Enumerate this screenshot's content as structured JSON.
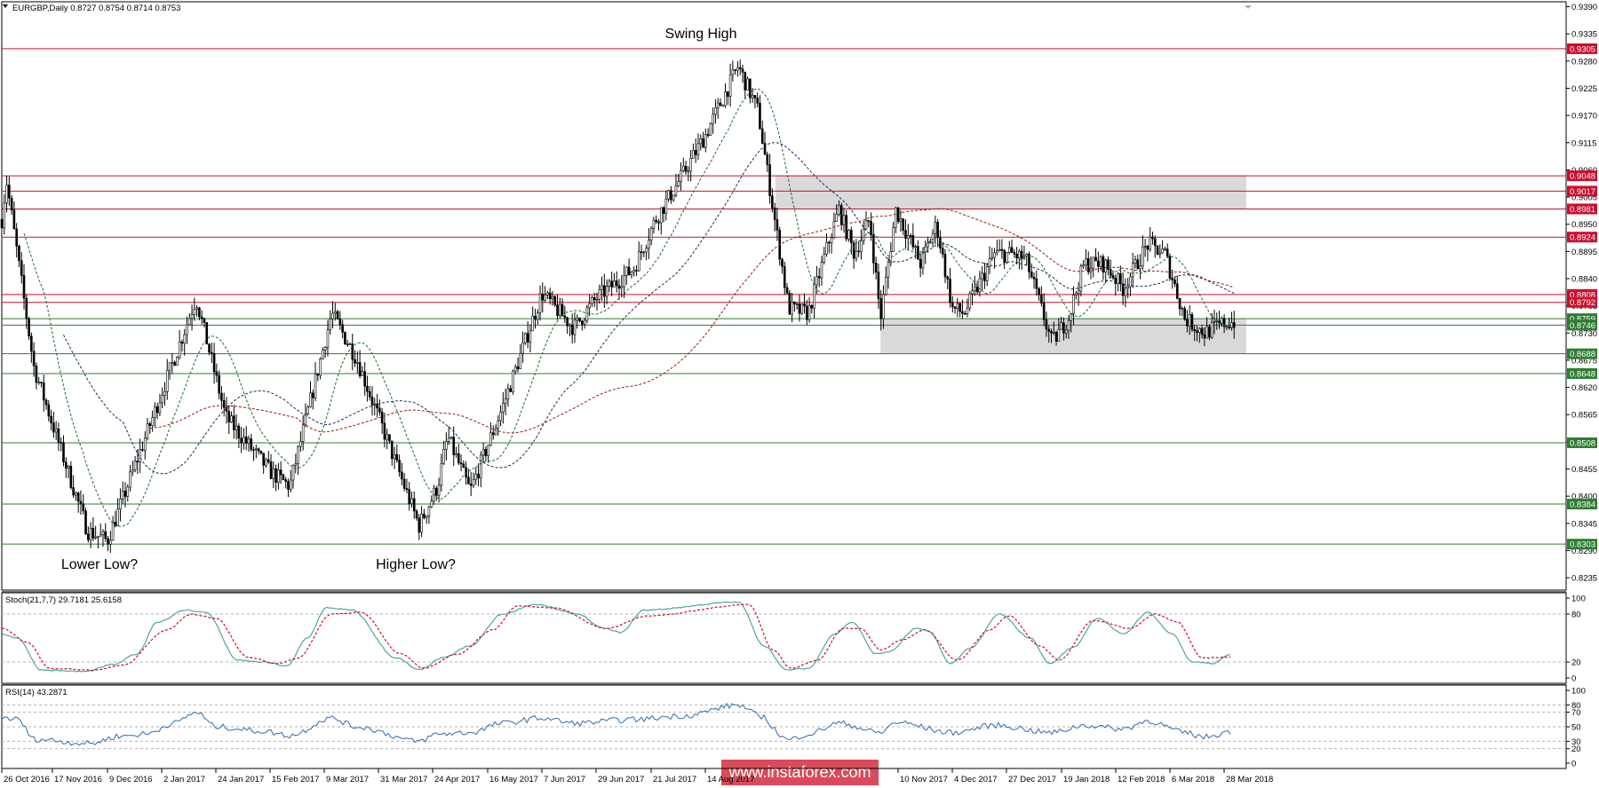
{
  "header": {
    "symbol_line": "EURGBP,Daily  0.8727 0.8754 0.8714 0.8753"
  },
  "annotations": {
    "swing_high": "Swing High",
    "lower_low": "Lower Low?",
    "higher_low": "Higher Low?"
  },
  "watermark": "www.instaforex.com",
  "colors": {
    "resistance": "#c8102e",
    "support": "#2e7d32",
    "zone": "#d9d9d9",
    "candle": "#000000",
    "stoch_main": "#4fa3a3",
    "stoch_signal": "#c8102e",
    "rsi": "#2b6cb0",
    "ma_fast": "#1a6b2a",
    "ma_mid": "#1a2a5a",
    "ma_slow": "#8b1a1a"
  },
  "chart_data": [
    {
      "type": "candlestick",
      "title": "EURGBP,Daily",
      "ohlc_last": {
        "open": 0.8727,
        "high": 0.8754,
        "low": 0.8714,
        "close": 0.8753
      },
      "ylim": [
        0.821,
        0.94
      ],
      "x_tick_labels": [
        "26 Oct 2016",
        "17 Nov 2016",
        "9 Dec 2016",
        "2 Jan 2017",
        "24 Jan 2017",
        "15 Feb 2017",
        "9 Mar 2017",
        "31 Mar 2017",
        "24 Apr 2017",
        "16 May 2017",
        "7 Jun 2017",
        "29 Jun 2017",
        "21 Jul 2017",
        "14 Aug 2017",
        "",
        "10 Nov 2017",
        "4 Dec 2017",
        "27 Dec 2017",
        "19 Jan 2018",
        "12 Feb 2018",
        "6 Mar 2018",
        "28 Mar 2018"
      ],
      "y_tick_labels": [
        "0.9390",
        "0.9335",
        "0.9280",
        "0.9225",
        "0.9170",
        "0.9115",
        "0.9060",
        "0.9005",
        "0.8950",
        "0.8895",
        "0.8840",
        "0.8785",
        "0.8730",
        "0.8675",
        "0.8620",
        "0.8565",
        "0.8510",
        "0.8455",
        "0.8400",
        "0.8345",
        "0.8290",
        "0.8235"
      ],
      "key_points": [
        {
          "x": "26 Oct 2016",
          "y": 0.896
        },
        {
          "x": "28 Oct 2016",
          "y": 0.904
        },
        {
          "x": "9 Nov 2016",
          "y": 0.866
        },
        {
          "x": "1 Dec 2016",
          "y": 0.833
        },
        {
          "x": "9 Dec 2016",
          "y": 0.831
        },
        {
          "x": "16 Jan 2017",
          "y": 0.88
        },
        {
          "x": "28 Jan 2017",
          "y": 0.856
        },
        {
          "x": "15 Feb 2017",
          "y": 0.845
        },
        {
          "x": "23 Feb 2017",
          "y": 0.842
        },
        {
          "x": "12 Mar 2017",
          "y": 0.877
        },
        {
          "x": "22 Mar 2017",
          "y": 0.868
        },
        {
          "x": "18 Apr 2017",
          "y": 0.834
        },
        {
          "x": "26 Apr 2017",
          "y": 0.842
        },
        {
          "x": "30 Apr 2017",
          "y": 0.852
        },
        {
          "x": "9 May 2017",
          "y": 0.841
        },
        {
          "x": "22 May 2017",
          "y": 0.858
        },
        {
          "x": "7 Jun 2017",
          "y": 0.881
        },
        {
          "x": "20 Jun 2017",
          "y": 0.874
        },
        {
          "x": "29 Jun 2017",
          "y": 0.88
        },
        {
          "x": "14 Jul 2017",
          "y": 0.886
        },
        {
          "x": "23 Jul 2017",
          "y": 0.896
        },
        {
          "x": "4 Aug 2017",
          "y": 0.905
        },
        {
          "x": "14 Aug 2017",
          "y": 0.913
        },
        {
          "x": "29 Aug 2017",
          "y": 0.927
        },
        {
          "x": "7 Sep 2017",
          "y": 0.918
        },
        {
          "x": "15 Sep 2017",
          "y": 0.895
        },
        {
          "x": "21 Sep 2017",
          "y": 0.878
        },
        {
          "x": "30 Sep 2017",
          "y": 0.877
        },
        {
          "x": "9 Oct 2017",
          "y": 0.891
        },
        {
          "x": "14 Oct 2017",
          "y": 0.898
        },
        {
          "x": "21 Oct 2017",
          "y": 0.889
        },
        {
          "x": "28 Oct 2017",
          "y": 0.896
        },
        {
          "x": "2 Nov 2017",
          "y": 0.876
        },
        {
          "x": "9 Nov 2017",
          "y": 0.898
        },
        {
          "x": "20 Nov 2017",
          "y": 0.887
        },
        {
          "x": "27 Nov 2017",
          "y": 0.895
        },
        {
          "x": "4 Dec 2017",
          "y": 0.878
        },
        {
          "x": "9 Dec 2017",
          "y": 0.877
        },
        {
          "x": "22 Dec 2017",
          "y": 0.889
        },
        {
          "x": "29 Dec 2017",
          "y": 0.889
        },
        {
          "x": "4 Jan 2018",
          "y": 0.888
        },
        {
          "x": "15 Jan 2018",
          "y": 0.871
        },
        {
          "x": "22 Jan 2018",
          "y": 0.876
        },
        {
          "x": "29 Jan 2018",
          "y": 0.887
        },
        {
          "x": "7 Feb 2018",
          "y": 0.887
        },
        {
          "x": "15 Feb 2018",
          "y": 0.882
        },
        {
          "x": "25 Feb 2018",
          "y": 0.891
        },
        {
          "x": "4 Mar 2018",
          "y": 0.889
        },
        {
          "x": "12 Mar 2018",
          "y": 0.876
        },
        {
          "x": "20 Mar 2018",
          "y": 0.873
        },
        {
          "x": "28 Mar 2018",
          "y": 0.875
        },
        {
          "x": "2 Apr 2018",
          "y": 0.8753
        }
      ],
      "horizontal_levels": {
        "resistance": [
          0.9305,
          0.9048,
          0.9017,
          0.8981,
          0.8924,
          0.8808,
          0.8792
        ],
        "support": [
          0.8759,
          0.8746,
          0.8688,
          0.8648,
          0.8508,
          0.8384,
          0.8303
        ],
        "labels": [
          "0.9305",
          "0.9048",
          "0.9017",
          "0.8981",
          "0.8924",
          "0.8808",
          "0.8792",
          "0.8759",
          "0.8746",
          "0.8688",
          "0.8648",
          "0.8508",
          "0.8384",
          "0.8303"
        ]
      },
      "zones": [
        {
          "from": "15 Sep 2017",
          "to": "6 Apr 2018",
          "y_low": 0.8981,
          "y_high": 0.9048
        },
        {
          "from": "2 Nov 2017",
          "to": "6 Apr 2018",
          "y_low": 0.8688,
          "y_high": 0.8759
        }
      ]
    },
    {
      "type": "line",
      "title": "Stoch(21,7,7) 29.7181 25.6158",
      "ylim": [
        0,
        100
      ],
      "y_tick_labels": [
        "100",
        "80",
        "20",
        "0"
      ],
      "levels": [
        80,
        20
      ],
      "series": [
        {
          "values": [
            {
              "x": "26 Oct 2016",
              "y": 55
            },
            {
              "x": "2 Nov 2016",
              "y": 50
            },
            {
              "x": "12 Nov 2016",
              "y": 10
            },
            {
              "x": "30 Nov 2016",
              "y": 8
            },
            {
              "x": "12 Dec 2016",
              "y": 17
            },
            {
              "x": "22 Dec 2016",
              "y": 30
            },
            {
              "x": "31 Dec 2016",
              "y": 70
            },
            {
              "x": "12 Jan 2017",
              "y": 85
            },
            {
              "x": "20 Jan 2017",
              "y": 82
            },
            {
              "x": "2 Feb 2017",
              "y": 22
            },
            {
              "x": "12 Feb 2017",
              "y": 20
            },
            {
              "x": "22 Feb 2017",
              "y": 15
            },
            {
              "x": "2 Mar 2017",
              "y": 50
            },
            {
              "x": "10 Mar 2017",
              "y": 88
            },
            {
              "x": "20 Mar 2017",
              "y": 85
            },
            {
              "x": "8 Apr 2017",
              "y": 25
            },
            {
              "x": "18 Apr 2017",
              "y": 10
            },
            {
              "x": "28 Apr 2017",
              "y": 25
            },
            {
              "x": "9 May 2017",
              "y": 40
            },
            {
              "x": "22 May 2017",
              "y": 80
            },
            {
              "x": "4 Jun 2017",
              "y": 92
            },
            {
              "x": "22 Jun 2017",
              "y": 80
            },
            {
              "x": "1 Jul 2017",
              "y": 63
            },
            {
              "x": "9 Jul 2017",
              "y": 57
            },
            {
              "x": "18 Jul 2017",
              "y": 85
            },
            {
              "x": "29 Aug 2017",
              "y": 95
            },
            {
              "x": "10 Sep 2017",
              "y": 40
            },
            {
              "x": "20 Sep 2017",
              "y": 10
            },
            {
              "x": "30 Sep 2017",
              "y": 12
            },
            {
              "x": "12 Oct 2017",
              "y": 55
            },
            {
              "x": "20 Oct 2017",
              "y": 70
            },
            {
              "x": "31 Oct 2017",
              "y": 30
            },
            {
              "x": "6 Nov 2017",
              "y": 33
            },
            {
              "x": "18 Nov 2017",
              "y": 62
            },
            {
              "x": "24 Nov 2017",
              "y": 58
            },
            {
              "x": "3 Dec 2017",
              "y": 18
            },
            {
              "x": "12 Dec 2017",
              "y": 38
            },
            {
              "x": "24 Dec 2017",
              "y": 80
            },
            {
              "x": "6 Jan 2018",
              "y": 50
            },
            {
              "x": "14 Jan 2018",
              "y": 18
            },
            {
              "x": "24 Jan 2018",
              "y": 38
            },
            {
              "x": "4 Feb 2018",
              "y": 75
            },
            {
              "x": "15 Feb 2018",
              "y": 55
            },
            {
              "x": "25 Feb 2018",
              "y": 82
            },
            {
              "x": "7 Mar 2018",
              "y": 55
            },
            {
              "x": "15 Mar 2018",
              "y": 20
            },
            {
              "x": "23 Mar 2018",
              "y": 18
            },
            {
              "x": "31 Mar 2018",
              "y": 30
            }
          ]
        },
        {
          "values": [
            {
              "x": "26 Oct 2016",
              "y": 62
            },
            {
              "x": "6 Nov 2016",
              "y": 45
            },
            {
              "x": "16 Nov 2016",
              "y": 12
            },
            {
              "x": "4 Dec 2016",
              "y": 10
            },
            {
              "x": "16 Dec 2016",
              "y": 16
            },
            {
              "x": "4 Jan 2017",
              "y": 60
            },
            {
              "x": "14 Jan 2017",
              "y": 80
            },
            {
              "x": "24 Jan 2017",
              "y": 75
            },
            {
              "x": "6 Feb 2017",
              "y": 26
            },
            {
              "x": "18 Feb 2017",
              "y": 18
            },
            {
              "x": "26 Feb 2017",
              "y": 24
            },
            {
              "x": "12 Mar 2017",
              "y": 80
            },
            {
              "x": "24 Mar 2017",
              "y": 82
            },
            {
              "x": "10 Apr 2017",
              "y": 30
            },
            {
              "x": "20 Apr 2017",
              "y": 12
            },
            {
              "x": "4 May 2017",
              "y": 30
            },
            {
              "x": "18 May 2017",
              "y": 60
            },
            {
              "x": "28 May 2017",
              "y": 90
            },
            {
              "x": "12 Jun 2017",
              "y": 88
            },
            {
              "x": "3 Jul 2017",
              "y": 62
            },
            {
              "x": "20 Jul 2017",
              "y": 78
            },
            {
              "x": "3 Sep 2017",
              "y": 92
            },
            {
              "x": "14 Sep 2017",
              "y": 35
            },
            {
              "x": "22 Sep 2017",
              "y": 12
            },
            {
              "x": "4 Oct 2017",
              "y": 22
            },
            {
              "x": "16 Oct 2017",
              "y": 62
            },
            {
              "x": "24 Oct 2017",
              "y": 62
            },
            {
              "x": "2 Nov 2017",
              "y": 35
            },
            {
              "x": "12 Nov 2017",
              "y": 48
            },
            {
              "x": "22 Nov 2017",
              "y": 60
            },
            {
              "x": "6 Dec 2017",
              "y": 22
            },
            {
              "x": "20 Dec 2017",
              "y": 60
            },
            {
              "x": "28 Dec 2017",
              "y": 78
            },
            {
              "x": "10 Jan 2018",
              "y": 40
            },
            {
              "x": "18 Jan 2018",
              "y": 22
            },
            {
              "x": "2 Feb 2018",
              "y": 72
            },
            {
              "x": "18 Feb 2018",
              "y": 62
            },
            {
              "x": "28 Feb 2018",
              "y": 80
            },
            {
              "x": "9 Mar 2018",
              "y": 70
            },
            {
              "x": "19 Mar 2018",
              "y": 25
            },
            {
              "x": "31 Mar 2018",
              "y": 26
            }
          ]
        }
      ]
    },
    {
      "type": "line",
      "title": "RSI(14) 43.2871",
      "ylim": [
        0,
        100
      ],
      "y_tick_labels": [
        "100",
        "80",
        "70",
        "50",
        "30",
        "20",
        "0"
      ],
      "levels": [
        80,
        70,
        50,
        30,
        20
      ],
      "series": [
        {
          "values": [
            {
              "x": "26 Oct 2016",
              "y": 63
            },
            {
              "x": "2 Nov 2016",
              "y": 60
            },
            {
              "x": "9 Nov 2016",
              "y": 33
            },
            {
              "x": "2 Dec 2016",
              "y": 27
            },
            {
              "x": "14 Dec 2016",
              "y": 37
            },
            {
              "x": "26 Dec 2016",
              "y": 40
            },
            {
              "x": "7 Jan 2017",
              "y": 55
            },
            {
              "x": "16 Jan 2017",
              "y": 70
            },
            {
              "x": "24 Jan 2017",
              "y": 50
            },
            {
              "x": "12 Feb 2017",
              "y": 44
            },
            {
              "x": "23 Feb 2017",
              "y": 38
            },
            {
              "x": "12 Mar 2017",
              "y": 62
            },
            {
              "x": "22 Mar 2017",
              "y": 50
            },
            {
              "x": "18 Apr 2017",
              "y": 30
            },
            {
              "x": "26 Apr 2017",
              "y": 40
            },
            {
              "x": "9 May 2017",
              "y": 42
            },
            {
              "x": "22 May 2017",
              "y": 55
            },
            {
              "x": "7 Jun 2017",
              "y": 62
            },
            {
              "x": "20 Jun 2017",
              "y": 55
            },
            {
              "x": "14 Jul 2017",
              "y": 60
            },
            {
              "x": "4 Aug 2017",
              "y": 65
            },
            {
              "x": "29 Aug 2017",
              "y": 80
            },
            {
              "x": "7 Sep 2017",
              "y": 66
            },
            {
              "x": "21 Sep 2017",
              "y": 32
            },
            {
              "x": "30 Sep 2017",
              "y": 40
            },
            {
              "x": "14 Oct 2017",
              "y": 55
            },
            {
              "x": "2 Nov 2017",
              "y": 42
            },
            {
              "x": "9 Nov 2017",
              "y": 56
            },
            {
              "x": "4 Dec 2017",
              "y": 42
            },
            {
              "x": "22 Dec 2017",
              "y": 52
            },
            {
              "x": "15 Jan 2018",
              "y": 42
            },
            {
              "x": "29 Jan 2018",
              "y": 52
            },
            {
              "x": "15 Feb 2018",
              "y": 47
            },
            {
              "x": "25 Feb 2018",
              "y": 58
            },
            {
              "x": "12 Mar 2018",
              "y": 42
            },
            {
              "x": "20 Mar 2018",
              "y": 36
            },
            {
              "x": "31 Mar 2018",
              "y": 43.2871
            }
          ]
        }
      ]
    }
  ]
}
